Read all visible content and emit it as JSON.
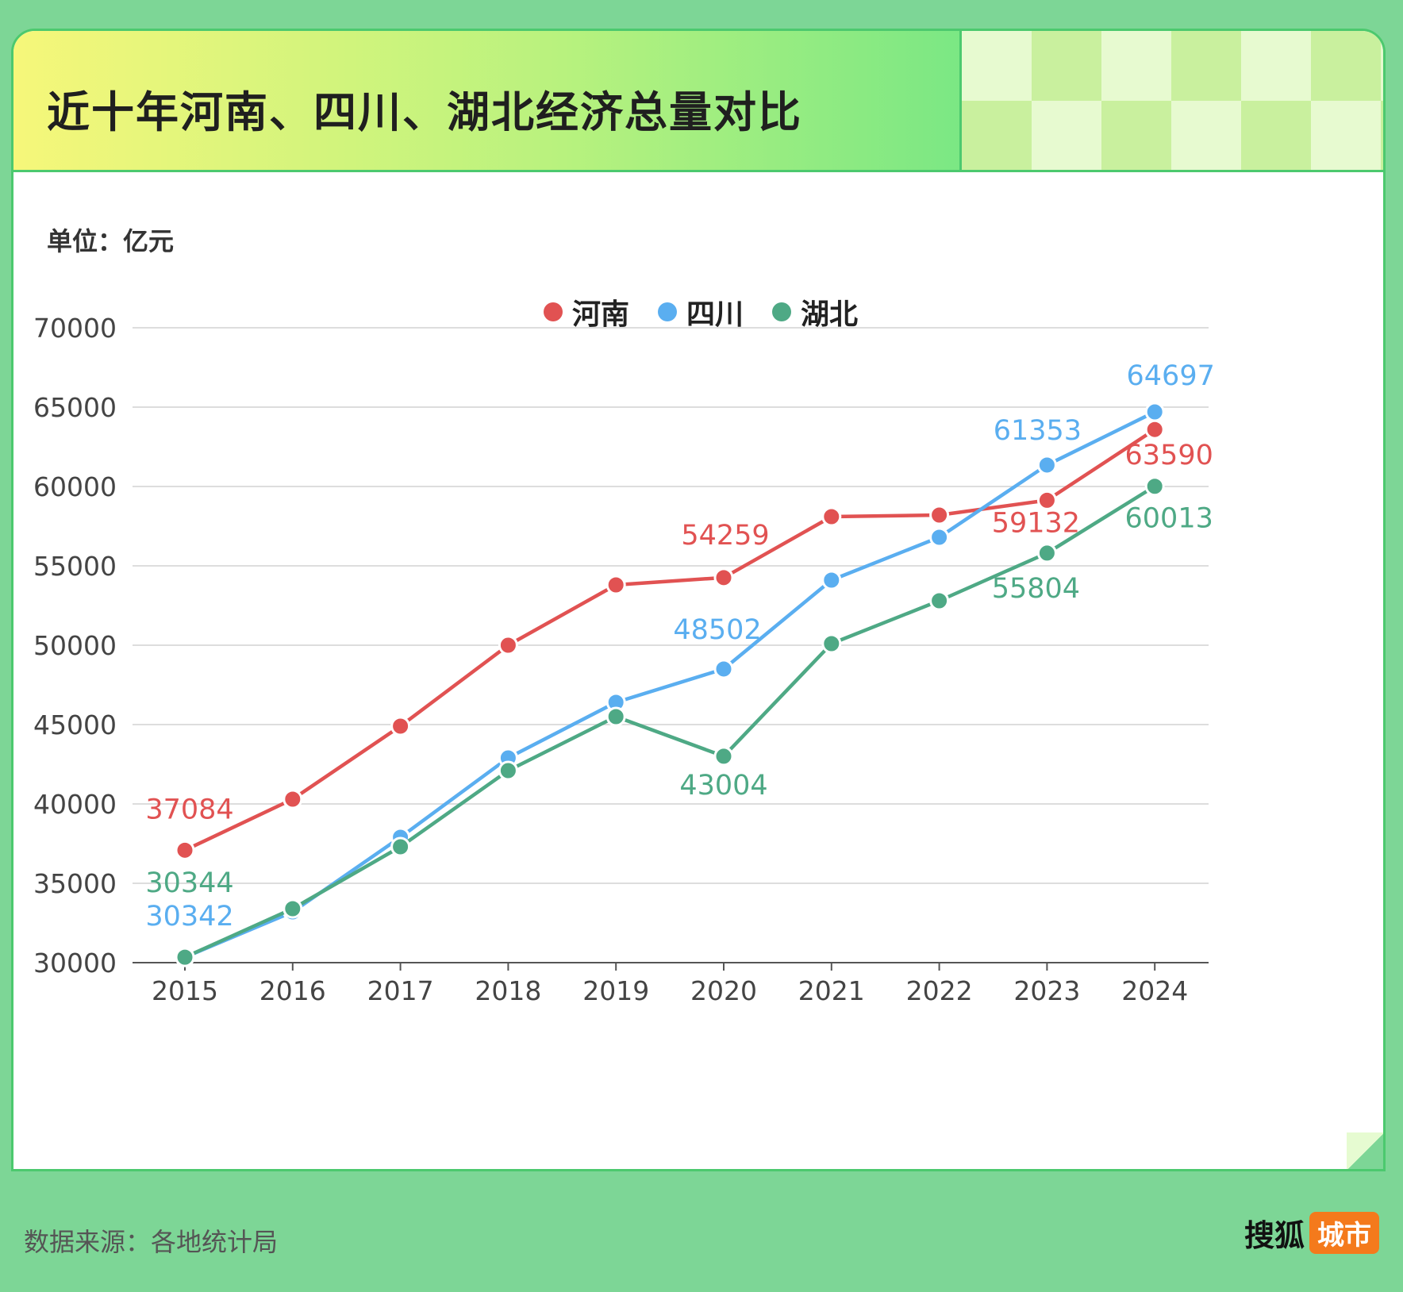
{
  "title": "近十年河南、四川、湖北经济总量对比",
  "unit_label": "单位：亿元",
  "source": "数据来源：各地统计局",
  "logo": {
    "main": "搜狐",
    "tag": "城市"
  },
  "colors": {
    "henan": "#e15252",
    "sichuan": "#5aaef0",
    "hubei": "#4ea985"
  },
  "chart_data": {
    "type": "line",
    "x": [
      "2015",
      "2016",
      "2017",
      "2018",
      "2019",
      "2020",
      "2021",
      "2022",
      "2023",
      "2024"
    ],
    "ylim": [
      30000,
      70000
    ],
    "yticks": [
      30000,
      35000,
      40000,
      45000,
      50000,
      55000,
      60000,
      65000,
      70000
    ],
    "grid": true,
    "legend_position": "top-center",
    "series": [
      {
        "key": "henan",
        "name": "河南",
        "values": [
          37084,
          40300,
          44900,
          50000,
          53800,
          54259,
          58100,
          58200,
          59132,
          63590
        ],
        "labels": {
          "0": "37084",
          "5": "54259",
          "8": "59132",
          "9": "63590"
        }
      },
      {
        "key": "sichuan",
        "name": "四川",
        "values": [
          30342,
          33200,
          37900,
          42900,
          46400,
          48502,
          54100,
          56800,
          61353,
          64697
        ],
        "labels": {
          "0": "30342",
          "5": "48502",
          "8": "61353",
          "9": "64697"
        }
      },
      {
        "key": "hubei",
        "name": "湖北",
        "values": [
          30344,
          33400,
          37300,
          42100,
          45500,
          43004,
          50100,
          52800,
          55804,
          60013
        ],
        "labels": {
          "0": "30344",
          "5": "43004",
          "8": "55804",
          "9": "60013"
        }
      }
    ]
  }
}
